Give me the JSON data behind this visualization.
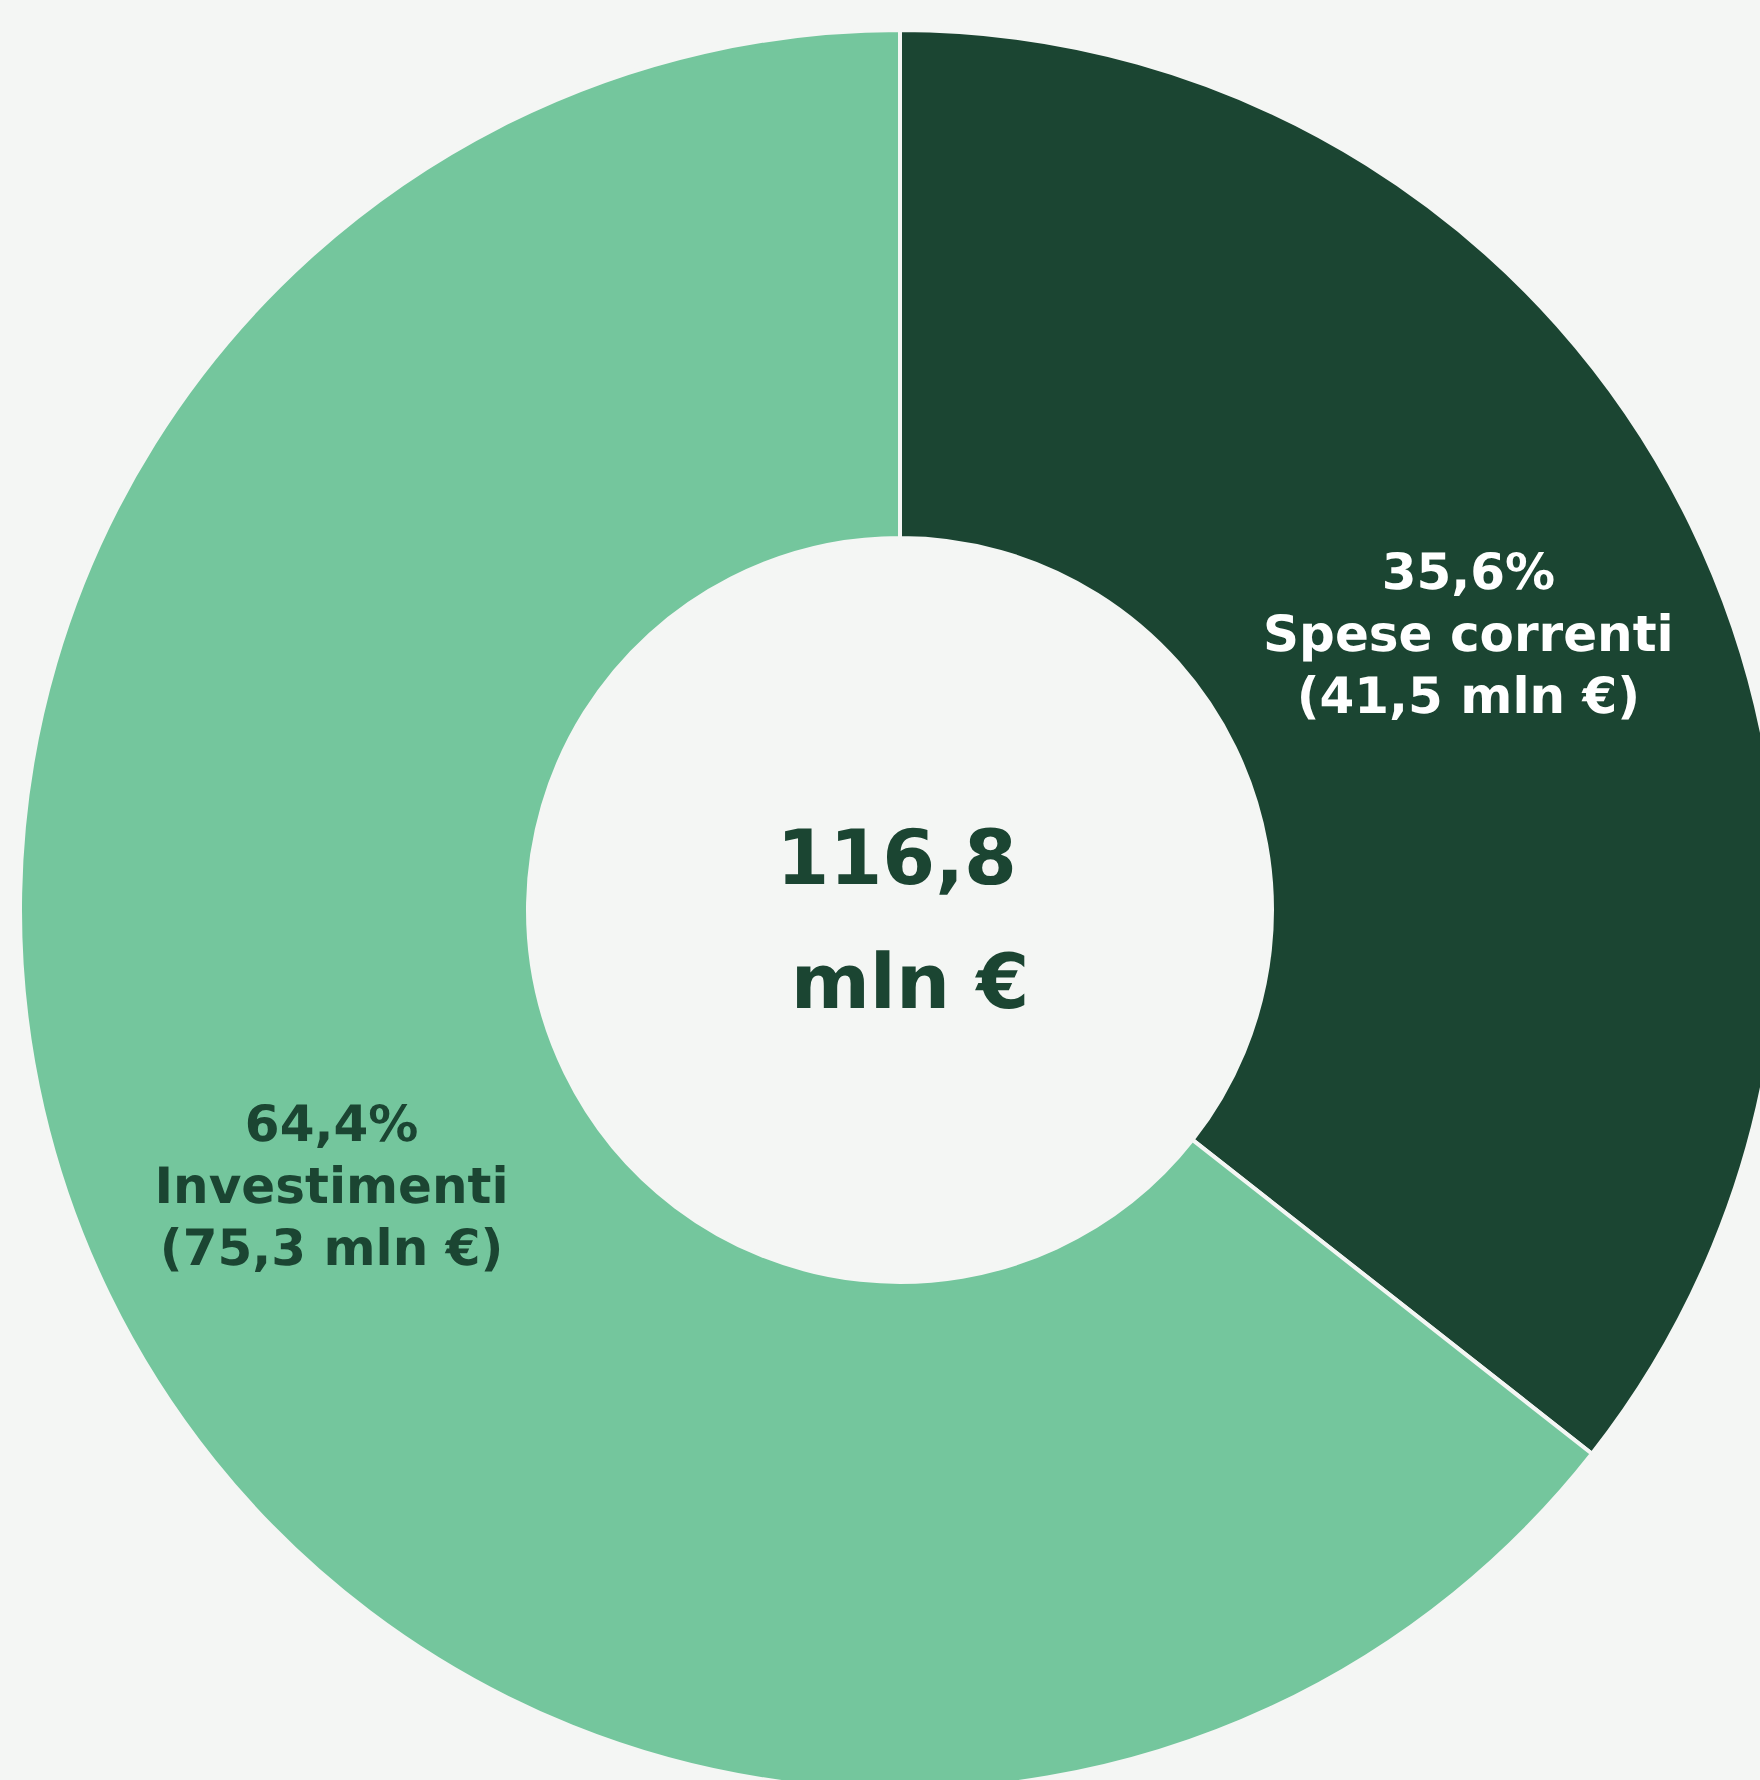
{
  "chart_data": {
    "type": "donut",
    "title": "116,8 mln €",
    "categories": [
      "Spese correnti\n(41,5 mln €)",
      "Investimenti\n(75,3 mln €)"
    ],
    "values": [
      35.6,
      64.4
    ],
    "colors": [
      "#1b4532",
      "#74c69d"
    ],
    "value_labels": [
      "35,6%",
      "64,4%"
    ],
    "legend": false
  }
}
